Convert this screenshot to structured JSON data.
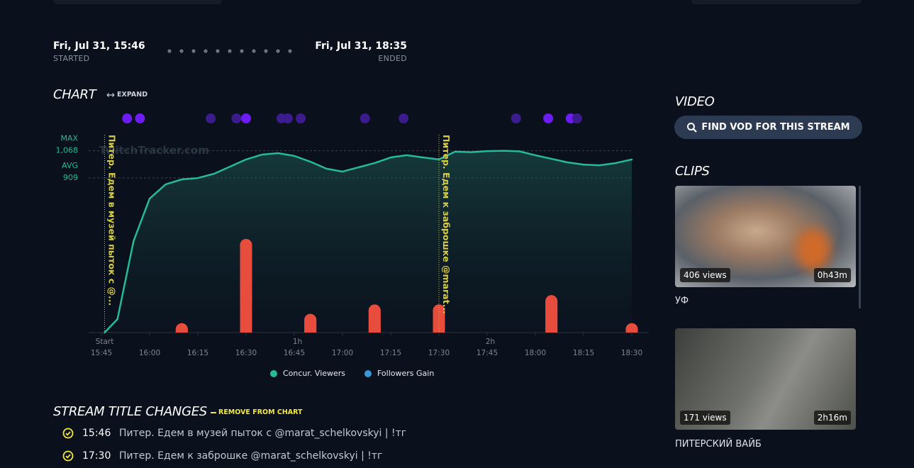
{
  "header": {
    "started": {
      "time": "Fri, Jul 31, 15:46",
      "label": "STARTED"
    },
    "ended": {
      "time": "Fri, Jul 31, 18:35",
      "label": "ENDED"
    }
  },
  "chart_section": {
    "title": "CHART",
    "expand": "EXPAND"
  },
  "chart_data": {
    "type": "combo",
    "watermark": "TwitchTracker.com",
    "xlim": [
      "15:45",
      "18:30"
    ],
    "xticks": [
      "15:45",
      "16:00",
      "16:15",
      "16:30",
      "16:45",
      "17:00",
      "17:15",
      "17:30",
      "17:45",
      "18:00",
      "18:15",
      "18:30"
    ],
    "elapsed_ticks": [
      {
        "value": "15:46",
        "label": "Start"
      },
      {
        "value": "16:46",
        "label": "1h"
      },
      {
        "value": "17:46",
        "label": "2h"
      }
    ],
    "ylim": [
      0,
      1100
    ],
    "y2lim": [
      0,
      20
    ],
    "reference_lines": [
      {
        "label": "MAX",
        "value": 1068,
        "value_label": "1,068"
      },
      {
        "label": "AVG",
        "value": 909,
        "value_label": "909"
      }
    ],
    "series": [
      {
        "name": "Concur. Viewers",
        "type": "line",
        "color": "#26b99a",
        "x": [
          "15:46",
          "15:50",
          "15:55",
          "16:00",
          "16:05",
          "16:10",
          "16:15",
          "16:20",
          "16:25",
          "16:30",
          "16:35",
          "16:40",
          "16:45",
          "16:50",
          "16:55",
          "17:00",
          "17:05",
          "17:10",
          "17:15",
          "17:20",
          "17:25",
          "17:30",
          "17:35",
          "17:40",
          "17:45",
          "17:50",
          "17:55",
          "18:00",
          "18:05",
          "18:10",
          "18:15",
          "18:20",
          "18:25",
          "18:30"
        ],
        "values": [
          0,
          79,
          537,
          787,
          871,
          900,
          908,
          933,
          975,
          1017,
          1046,
          1054,
          1038,
          1004,
          963,
          946,
          971,
          996,
          1029,
          1042,
          1029,
          1017,
          1063,
          1060,
          1066,
          1068,
          1065,
          1042,
          1021,
          1000,
          987,
          983,
          996,
          1017
        ]
      },
      {
        "name": "Followers Gain",
        "type": "bar",
        "axis": "y2",
        "color": "#e74c3c",
        "legend_color": "#3498db",
        "x": [
          "16:10",
          "16:30",
          "16:50",
          "17:10",
          "17:30",
          "18:05",
          "18:30"
        ],
        "values": [
          1,
          10,
          2,
          3,
          3,
          4,
          1
        ]
      }
    ],
    "annotations": [
      {
        "x": "15:46",
        "text": "Питер. Едем в музей пыток с @..."
      },
      {
        "x": "17:30",
        "text": "Питер. Едем к заброшке @marat..."
      }
    ],
    "event_markers": [
      {
        "x": "15:53",
        "color": "#6c1cf5"
      },
      {
        "x": "15:57",
        "color": "#6c1cf5"
      },
      {
        "x": "16:19",
        "color": "#3b1c8c"
      },
      {
        "x": "16:27",
        "color": "#3b1c8c"
      },
      {
        "x": "16:30",
        "color": "#6c1cf5"
      },
      {
        "x": "16:41",
        "color": "#3b1c8c"
      },
      {
        "x": "16:43",
        "color": "#3b1c8c"
      },
      {
        "x": "16:47",
        "color": "#3b1c8c"
      },
      {
        "x": "17:07",
        "color": "#3b1c8c"
      },
      {
        "x": "17:19",
        "color": "#3b1c8c"
      },
      {
        "x": "17:54",
        "color": "#3b1c8c"
      },
      {
        "x": "18:04",
        "color": "#6c1cf5"
      },
      {
        "x": "18:11",
        "color": "#6c1cf5"
      },
      {
        "x": "18:13",
        "color": "#3b1c8c"
      }
    ]
  },
  "video": {
    "title": "VIDEO",
    "button": "FIND VOD FOR THIS STREAM"
  },
  "clips": {
    "title": "CLIPS",
    "items": [
      {
        "views": "406 views",
        "duration": "0h43m",
        "title": "УФ"
      },
      {
        "views": "171 views",
        "duration": "2h16m",
        "title": "ПИТЕРСКИЙ ВАЙБ"
      }
    ]
  },
  "title_changes": {
    "title": "STREAM TITLE CHANGES",
    "action": "REMOVE FROM CHART",
    "items": [
      {
        "time": "15:46",
        "text": "Питер. Едем в музей пыток с @marat_schelkovskyi | !тг"
      },
      {
        "time": "17:30",
        "text": "Питер. Едем к заброшке @marat_schelkovskyi | !тг"
      }
    ]
  }
}
